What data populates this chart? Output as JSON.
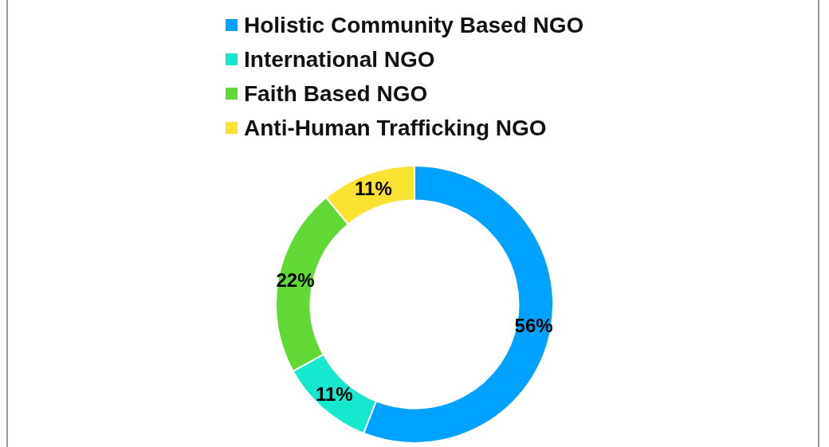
{
  "chart_data": {
    "type": "donut",
    "categories": [
      "Holistic Community Based NGO",
      "International NGO",
      "Faith Based NGO",
      "Anti-Human Trafficking NGO"
    ],
    "values": [
      56,
      11,
      22,
      11
    ],
    "colors": [
      "#00a2ff",
      "#16e7cf",
      "#61d836",
      "#fae232"
    ],
    "value_labels": [
      "56%",
      "11%",
      "22%",
      "11%"
    ],
    "legend": "top"
  }
}
